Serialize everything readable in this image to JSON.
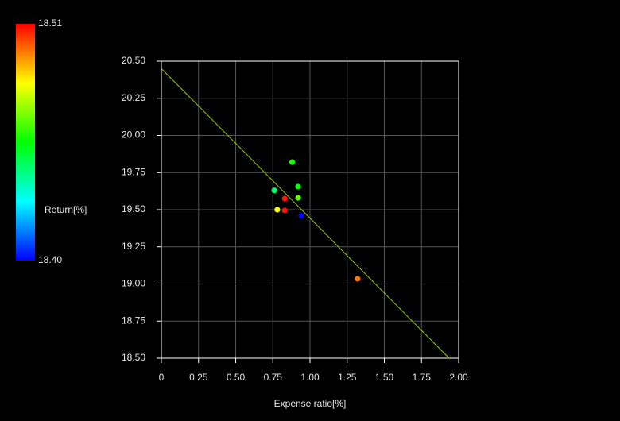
{
  "chart_data": {
    "type": "scatter",
    "x_label": "Expense ratio[%]",
    "x": [
      0.88,
      0.92,
      0.92,
      0.76,
      0.83,
      0.78,
      0.83,
      0.94,
      1.32
    ],
    "y": [
      19.82,
      19.655,
      19.58,
      19.63,
      19.575,
      19.5,
      19.495,
      19.46,
      19.035
    ],
    "c": [
      18.457,
      18.455,
      18.466,
      18.444,
      18.508,
      18.4825,
      18.508,
      18.4,
      18.497
    ],
    "colorbar": {
      "label": "Return[%]",
      "lim": [
        18.4,
        18.51
      ],
      "ticks": [
        {
          "value": 18.4,
          "label": "18.40"
        },
        18.51
      ],
      "colormap": [
        "#0000ff",
        "#00ffff",
        "#00ff00",
        "#ffff00",
        "#ff0000"
      ]
    },
    "fit_line": {
      "x": [
        0,
        1.936
      ],
      "y": [
        20.45,
        18.5
      ],
      "color": "#99cc00"
    },
    "xlim": [
      0,
      2
    ],
    "ylim": [
      18.5,
      20.5
    ],
    "xticks": [
      0,
      0.25,
      {
        "value": 0.5,
        "label": "0.50"
      },
      0.75,
      {
        "value": 1,
        "label": "1.00"
      },
      1.25,
      {
        "value": 1.5,
        "label": "1.50"
      },
      1.75,
      {
        "value": 2,
        "label": "2.00"
      }
    ],
    "yticks": [
      {
        "value": 18.5,
        "label": "18.50"
      },
      18.75,
      {
        "value": 19,
        "label": "19.00"
      },
      19.25,
      {
        "value": 19.5,
        "label": "19.50"
      },
      19.75,
      {
        "value": 20,
        "label": "20.00"
      },
      20.25,
      {
        "value": 20.5,
        "label": "20.50"
      }
    ],
    "grid": true
  }
}
